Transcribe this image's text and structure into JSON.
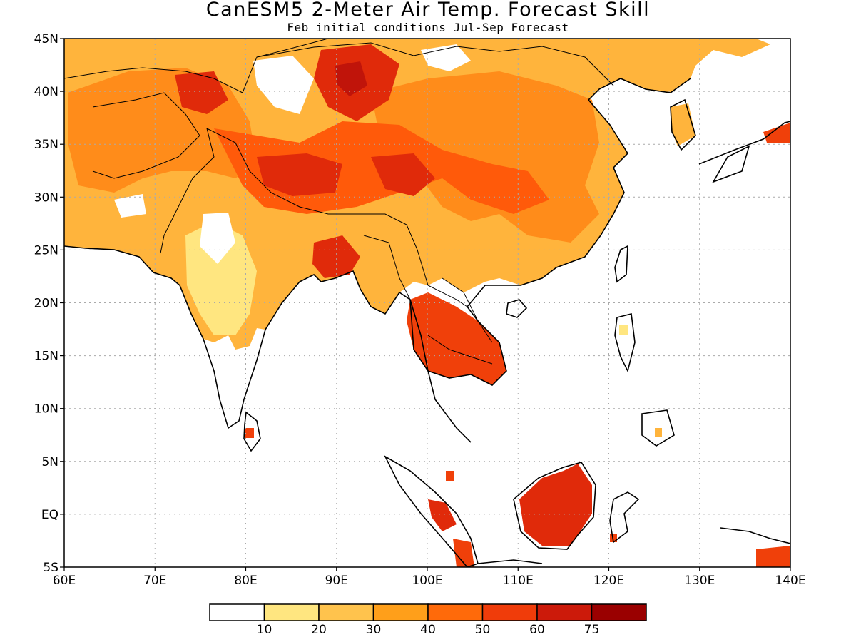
{
  "header": {
    "title": "CanESM5 2-Meter Air Temp. Forecast Skill",
    "subtitle": "Feb initial conditions  Jul-Sep Forecast"
  },
  "map": {
    "lon_range": [
      60,
      140
    ],
    "lat_range": [
      -5,
      45
    ],
    "lon_ticks": [
      "60E",
      "70E",
      "80E",
      "90E",
      "100E",
      "110E",
      "120E",
      "130E",
      "140E"
    ],
    "lat_ticks": [
      "5S",
      "EQ",
      "5N",
      "10N",
      "15N",
      "20N",
      "25N",
      "30N",
      "35N",
      "40N",
      "45N"
    ],
    "gridlines": true,
    "field": "2-meter air temperature forecast skill"
  },
  "colorbar": {
    "labels": [
      "10",
      "20",
      "30",
      "40",
      "50",
      "60",
      "75"
    ],
    "colors": [
      "#ffffff",
      "#ffe680",
      "#ffc34d",
      "#ff9f1a",
      "#ff6a0a",
      "#f03c0a",
      "#cc1a0a",
      "#9a0000"
    ]
  }
}
